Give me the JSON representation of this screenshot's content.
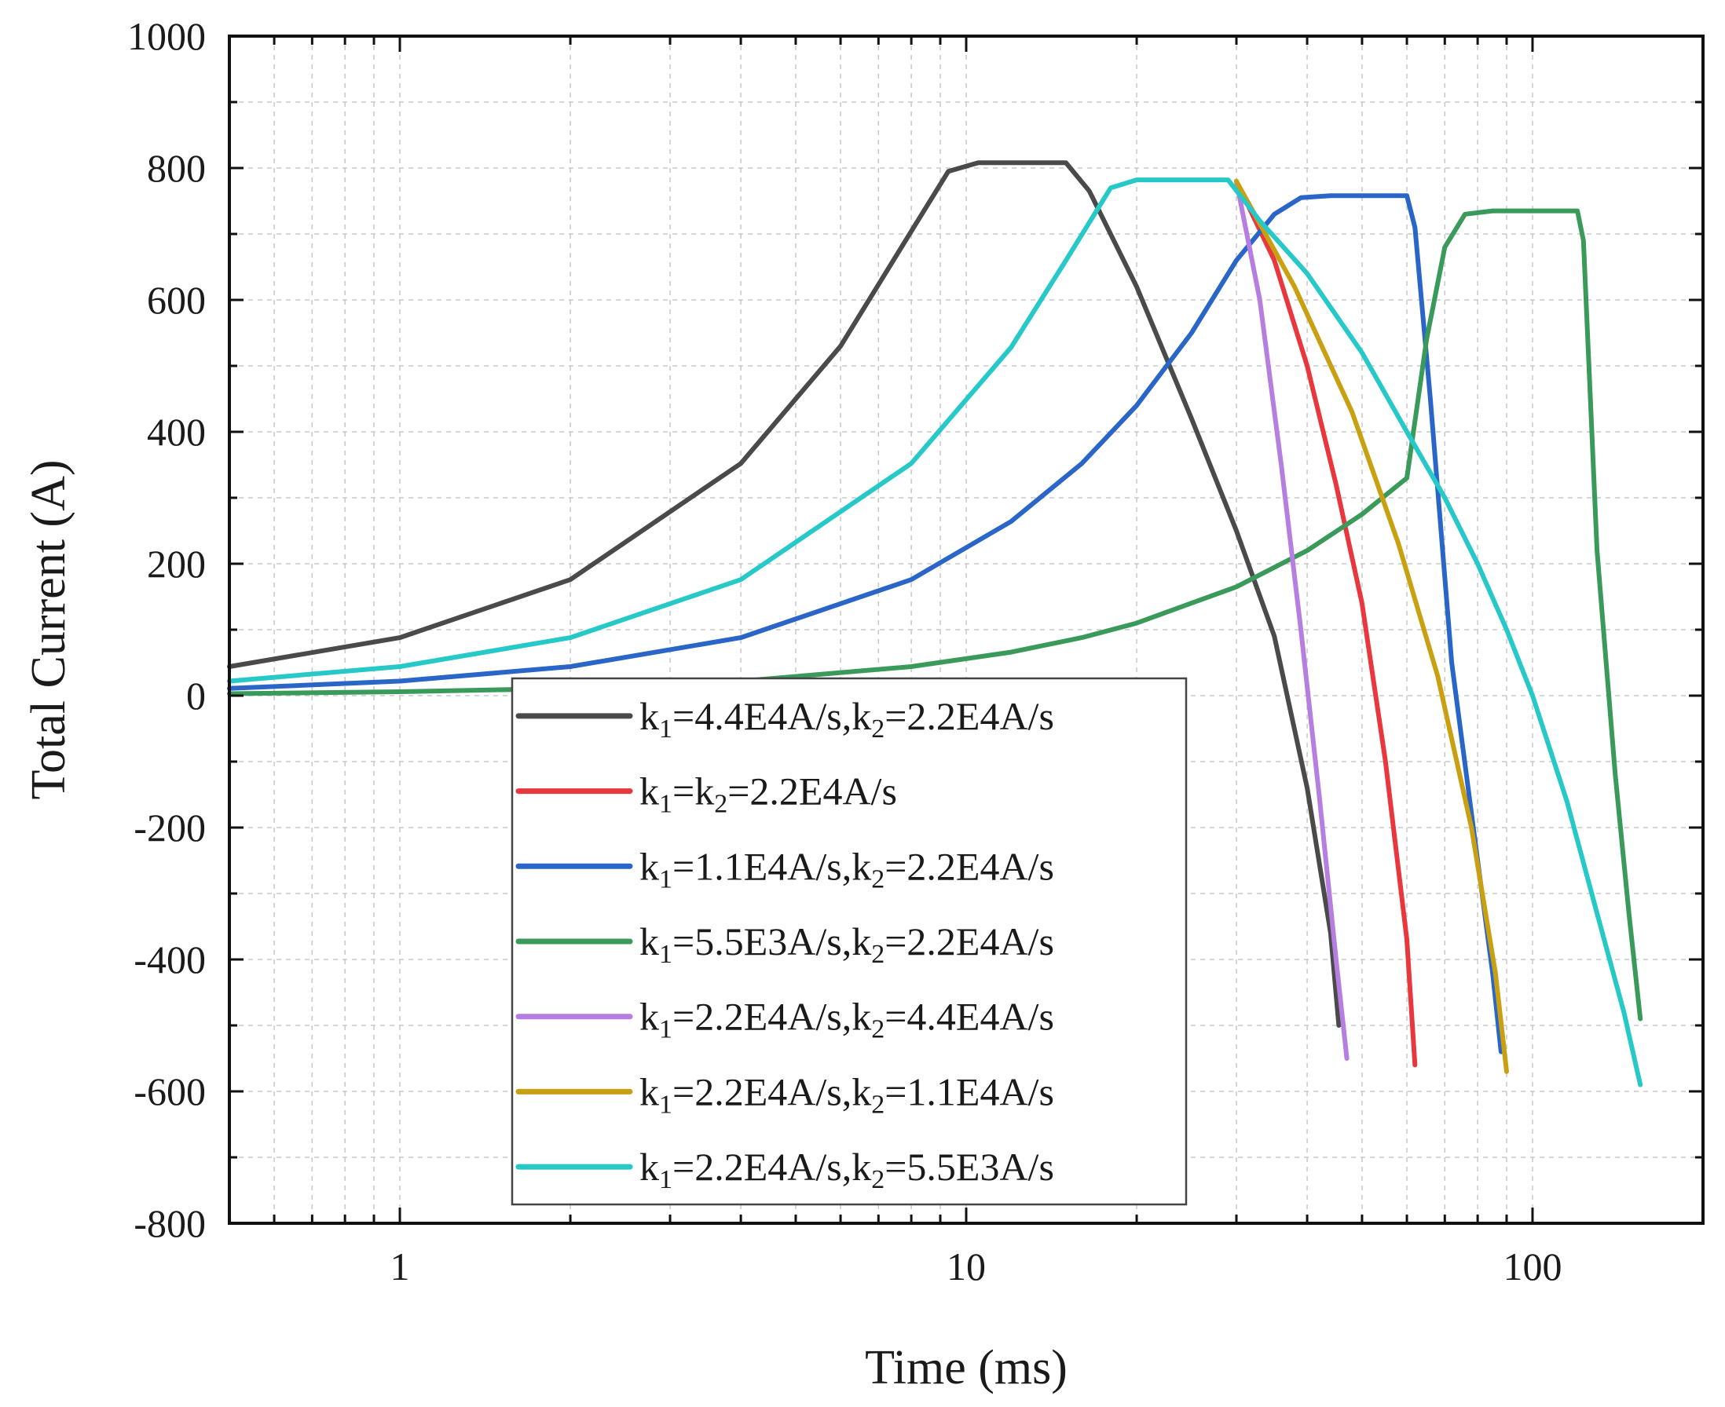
{
  "chart_data": {
    "type": "line",
    "xlabel": "Time (ms)",
    "ylabel": "Total Current (A)",
    "xscale": "log",
    "xlim": [
      0.5,
      200
    ],
    "ylim": [
      -800,
      1000
    ],
    "x_ticks": [
      {
        "value": 1,
        "label": "1"
      },
      {
        "value": 10,
        "label": "10"
      },
      {
        "value": 100,
        "label": "100"
      }
    ],
    "y_ticks": [
      {
        "value": 1000,
        "label": "1000"
      },
      {
        "value": 800,
        "label": "800"
      },
      {
        "value": 600,
        "label": "600"
      },
      {
        "value": 400,
        "label": "400"
      },
      {
        "value": 200,
        "label": "200"
      },
      {
        "value": 0,
        "label": "0"
      },
      {
        "value": -200,
        "label": "-200"
      },
      {
        "value": -400,
        "label": "-400"
      },
      {
        "value": -600,
        "label": "-600"
      },
      {
        "value": -800,
        "label": "-800"
      }
    ],
    "grid": true,
    "legend_position": "center",
    "series": [
      {
        "name": "k1=4.4E4A/s,k2=2.2E4A/s",
        "label_parts": [
          [
            "k",
            "1",
            "=4.4E4A/s,"
          ],
          [
            "k",
            "2",
            "=2.2E4A/s"
          ]
        ],
        "color": "#4a4a4a",
        "points": [
          [
            0.5,
            44
          ],
          [
            1,
            88
          ],
          [
            2,
            176
          ],
          [
            4,
            352
          ],
          [
            6,
            530
          ],
          [
            8,
            704
          ],
          [
            9.3,
            795
          ],
          [
            10.5,
            808
          ],
          [
            15,
            808
          ],
          [
            16.5,
            765
          ],
          [
            20,
            620
          ],
          [
            25,
            420
          ],
          [
            30,
            250
          ],
          [
            35,
            90
          ],
          [
            40,
            -140
          ],
          [
            44,
            -360
          ],
          [
            45.5,
            -500
          ]
        ]
      },
      {
        "name": "k1=k2=2.2E4A/s",
        "label_parts": [
          [
            "k",
            "1",
            "="
          ],
          [
            "k",
            "2",
            "=2.2E4A/s"
          ]
        ],
        "color": "#e8383d",
        "points": [
          [
            30,
            780
          ],
          [
            35,
            660
          ],
          [
            40,
            500
          ],
          [
            45,
            320
          ],
          [
            50,
            140
          ],
          [
            55,
            -100
          ],
          [
            60,
            -370
          ],
          [
            62,
            -560
          ]
        ]
      },
      {
        "name": "k1=1.1E4A/s,k2=2.2E4A/s",
        "label_parts": [
          [
            "k",
            "1",
            "=1.1E4A/s,"
          ],
          [
            "k",
            "2",
            "=2.2E4A/s"
          ]
        ],
        "color": "#2a66c8",
        "points": [
          [
            0.5,
            11
          ],
          [
            1,
            22
          ],
          [
            2,
            44
          ],
          [
            4,
            88
          ],
          [
            8,
            176
          ],
          [
            12,
            264
          ],
          [
            16,
            352
          ],
          [
            20,
            440
          ],
          [
            25,
            550
          ],
          [
            30,
            660
          ],
          [
            35,
            730
          ],
          [
            39,
            755
          ],
          [
            44,
            758
          ],
          [
            60,
            758
          ],
          [
            62,
            710
          ],
          [
            66,
            450
          ],
          [
            72,
            50
          ],
          [
            80,
            -250
          ],
          [
            85,
            -420
          ],
          [
            88,
            -540
          ]
        ]
      },
      {
        "name": "k1=5.5E3A/s,k2=2.2E4A/s",
        "label_parts": [
          [
            "k",
            "1",
            "=5.5E3A/s,"
          ],
          [
            "k",
            "2",
            "=2.2E4A/s"
          ]
        ],
        "color": "#3a9a5a",
        "points": [
          [
            0.5,
            3
          ],
          [
            1,
            6
          ],
          [
            2,
            11
          ],
          [
            4,
            22
          ],
          [
            8,
            44
          ],
          [
            12,
            66
          ],
          [
            16,
            88
          ],
          [
            20,
            110
          ],
          [
            30,
            165
          ],
          [
            40,
            220
          ],
          [
            50,
            275
          ],
          [
            60,
            330
          ],
          [
            65,
            540
          ],
          [
            70,
            680
          ],
          [
            76,
            730
          ],
          [
            85,
            735
          ],
          [
            120,
            735
          ],
          [
            123,
            690
          ],
          [
            130,
            220
          ],
          [
            140,
            -120
          ],
          [
            148,
            -330
          ],
          [
            155,
            -490
          ]
        ]
      },
      {
        "name": "k1=2.2E4A/s,k2=4.4E4A/s",
        "label_parts": [
          [
            "k",
            "1",
            "=2.2E4A/s,"
          ],
          [
            "k",
            "2",
            "=4.4E4A/s"
          ]
        ],
        "color": "#b57ee0",
        "points": [
          [
            30,
            780
          ],
          [
            33,
            600
          ],
          [
            36,
            350
          ],
          [
            39,
            100
          ],
          [
            42,
            -150
          ],
          [
            45,
            -400
          ],
          [
            47,
            -550
          ]
        ]
      },
      {
        "name": "k1=2.2E4A/s,k2=1.1E4A/s",
        "label_parts": [
          [
            "k",
            "1",
            "=2.2E4A/s,"
          ],
          [
            "k",
            "2",
            "=1.1E4A/s"
          ]
        ],
        "color": "#c9a012",
        "points": [
          [
            30,
            780
          ],
          [
            38,
            620
          ],
          [
            48,
            430
          ],
          [
            58,
            230
          ],
          [
            68,
            30
          ],
          [
            78,
            -200
          ],
          [
            86,
            -420
          ],
          [
            90,
            -570
          ]
        ]
      },
      {
        "name": "k1=2.2E4A/s,k2=5.5E3A/s",
        "label_parts": [
          [
            "k",
            "1",
            "=2.2E4A/s,"
          ],
          [
            "k",
            "2",
            "=5.5E3A/s"
          ]
        ],
        "color": "#26c8c8",
        "points": [
          [
            0.5,
            22
          ],
          [
            1,
            44
          ],
          [
            2,
            88
          ],
          [
            4,
            176
          ],
          [
            8,
            352
          ],
          [
            12,
            528
          ],
          [
            15,
            660
          ],
          [
            18,
            770
          ],
          [
            20,
            782
          ],
          [
            29,
            782
          ],
          [
            33,
            720
          ],
          [
            40,
            640
          ],
          [
            50,
            520
          ],
          [
            60,
            400
          ],
          [
            70,
            300
          ],
          [
            80,
            200
          ],
          [
            90,
            100
          ],
          [
            100,
            0
          ],
          [
            115,
            -160
          ],
          [
            130,
            -330
          ],
          [
            145,
            -480
          ],
          [
            155,
            -590
          ]
        ]
      }
    ]
  }
}
